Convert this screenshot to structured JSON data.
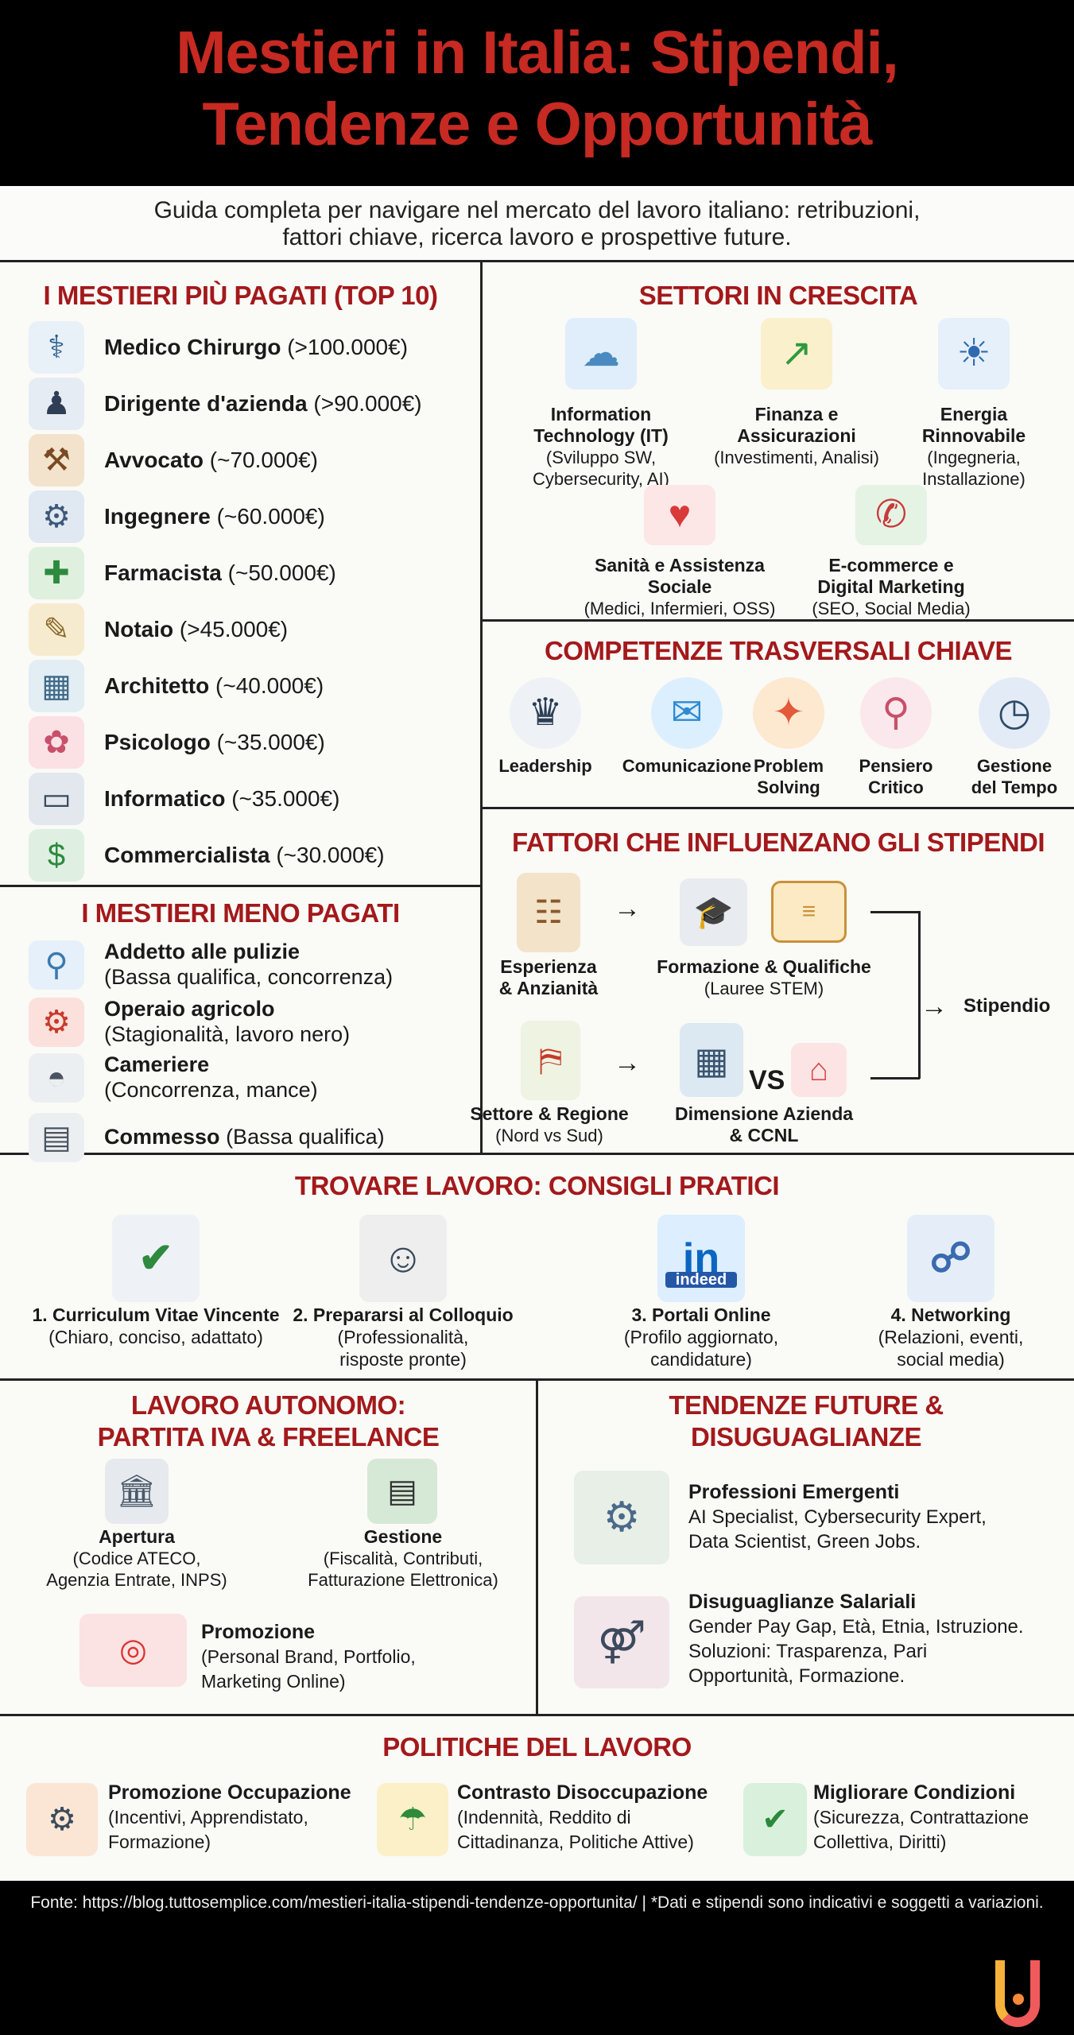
{
  "header": {
    "title_line1": "Mestieri in Italia: Stipendi,",
    "title_line2": "Tendenze e Opportunità",
    "subtitle_line1": "Guida completa per navigare nel mercato del lavoro italiano: retribuzioni,",
    "subtitle_line2": "fattori chiave, ricerca lavoro e prospettive future."
  },
  "colors": {
    "title": "#c62a22",
    "heading": "#a3191b",
    "background": "#fafaf7",
    "frame": "#000000"
  },
  "top_paid": {
    "title": "I MESTIERI PIÙ PAGATI (TOP 10)",
    "items": [
      {
        "name": "Medico Chirurgo",
        "salary": "(>100.000€)",
        "icon": "stethoscope-heart"
      },
      {
        "name": "Dirigente d'azienda",
        "salary": "(>90.000€)",
        "icon": "manager-growth"
      },
      {
        "name": "Avvocato",
        "salary": "(~70.000€)",
        "icon": "gavel"
      },
      {
        "name": "Ingegnere",
        "salary": "(~60.000€)",
        "icon": "gear-wrench"
      },
      {
        "name": "Farmacista",
        "salary": "(~50.000€)",
        "icon": "mortar-pestle"
      },
      {
        "name": "Notaio",
        "salary": "(>45.000€)",
        "icon": "scroll-document"
      },
      {
        "name": "Architetto",
        "salary": "(~40.000€)",
        "icon": "building-pencil"
      },
      {
        "name": "Psicologo",
        "salary": "(~35.000€)",
        "icon": "brain"
      },
      {
        "name": "Informatico",
        "salary": "(~35.000€)",
        "icon": "monitor-code"
      },
      {
        "name": "Commercialista",
        "salary": "(~30.000€)",
        "icon": "calculator-money"
      }
    ]
  },
  "least_paid": {
    "title": "I MESTIERI MENO PAGATI",
    "items": [
      {
        "name": "Addetto alle pulizie",
        "note": "(Bassa qualifica, concorrenza)",
        "icon": "mop-bucket"
      },
      {
        "name": "Operaio agricolo",
        "note": "(Stagionalità, lavoro nero)",
        "icon": "tractor"
      },
      {
        "name": "Cameriere",
        "note": "(Concorrenza, mance)",
        "icon": "serving-tray"
      },
      {
        "name": "Commesso",
        "note": "(Bassa qualifica)",
        "icon": "cash-register"
      }
    ]
  },
  "sectors": {
    "title": "SETTORI IN CRESCITA",
    "items": [
      {
        "title_1": "Information",
        "title_2": "Technology (IT)",
        "sub_1": "(Sviluppo SW,",
        "sub_2": "Cybersecurity, AI)",
        "icon": "cloud-lock"
      },
      {
        "title_1": "Finanza e",
        "title_2": "Assicurazioni",
        "sub_1": "(Investimenti, Analisi)",
        "sub_2": "",
        "icon": "coins-growth"
      },
      {
        "title_1": "Energia",
        "title_2": "Rinnovabile",
        "sub_1": "(Ingegneria,",
        "sub_2": "Installazione)",
        "icon": "wind-solar"
      },
      {
        "title_1": "Sanità e Assistenza",
        "title_2": "Sociale",
        "sub_1": "(Medici, Infermieri, OSS)",
        "sub_2": "",
        "icon": "hands-heart"
      },
      {
        "title_1": "E-commerce e",
        "title_2": "Digital Marketing",
        "sub_1": "(SEO, Social Media)",
        "sub_2": "",
        "icon": "cart-megaphone"
      }
    ]
  },
  "skills": {
    "title": "COMPETENZE TRASVERSALI CHIAVE",
    "items": [
      {
        "l1": "Leadership",
        "l2": "",
        "icon": "leader-team"
      },
      {
        "l1": "Comunicazione",
        "l2": "",
        "icon": "speech-bubbles"
      },
      {
        "l1": "Problem",
        "l2": "Solving",
        "icon": "puzzle"
      },
      {
        "l1": "Pensiero",
        "l2": "Critico",
        "icon": "magnifier-brain"
      },
      {
        "l1": "Gestione",
        "l2": "del Tempo",
        "icon": "clock-check"
      }
    ]
  },
  "factors": {
    "title": "FATTORI CHE INFLUENZANO GLI STIPENDI",
    "experience": {
      "l1": "Esperienza",
      "l2": "& Anzianità",
      "icon": "ladder-chart"
    },
    "education": {
      "l1": "Formazione & Qualifiche",
      "l2": "(Lauree STEM)",
      "icon": "graduation-cap-diploma"
    },
    "region": {
      "l1": "Settore & Regione",
      "l2": "(Nord vs Sud)",
      "icon": "italy-map"
    },
    "company": {
      "l1": "Dimensione Azienda",
      "l2": "& CCNL",
      "vs": "VS",
      "icon": "office-vs-shop"
    },
    "result": "Stipendio"
  },
  "job_tips": {
    "title": "TROVARE LAVORO: CONSIGLI PRATICI",
    "items": [
      {
        "title": "1. Curriculum Vitae Vincente",
        "sub_1": "(Chiaro, conciso, adattato)",
        "sub_2": "",
        "icon": "cv-document"
      },
      {
        "title": "2. Prepararsi al Colloquio",
        "sub_1": "(Professionalità,",
        "sub_2": "risposte pronte)",
        "icon": "interview-handshake"
      },
      {
        "title": "3. Portali Online",
        "sub_1": "(Profilo aggiornato,",
        "sub_2": "candidature)",
        "icon": "monitor-job-portals",
        "badge": "indeed"
      },
      {
        "title": "4. Networking",
        "sub_1": "(Relazioni, eventi,",
        "sub_2": "social media)",
        "icon": "network-people"
      }
    ]
  },
  "self_employment": {
    "title_1": "LAVORO AUTONOMO:",
    "title_2": "PARTITA IVA & FREELANCE",
    "items": [
      {
        "title": "Apertura",
        "sub_1": "(Codice ATECO,",
        "sub_2": "Agenzia Entrate, INPS)",
        "icon": "government-building"
      },
      {
        "title": "Gestione",
        "sub_1": "(Fiscalità, Contributi,",
        "sub_2": "Fatturazione Elettronica)",
        "icon": "calculator-invoice"
      },
      {
        "title": "Promozione",
        "sub_1": "(Personal Brand, Portfolio,",
        "sub_2": "Marketing Online)",
        "icon": "megaphone-target"
      }
    ]
  },
  "trends": {
    "title_1": "TENDENZE FUTURE &",
    "title_2": "DISUGUAGLIANZE",
    "items": [
      {
        "title": "Professioni Emergenti",
        "lines": [
          "AI Specialist, Cybersecurity Expert,",
          "Data Scientist, Green Jobs."
        ],
        "icon": "robot-gear-leaf"
      },
      {
        "title": "Disuguaglianze Salariali",
        "lines": [
          "Gender Pay Gap, Età, Etnia, Istruzione.",
          "Soluzioni: Trasparenza, Pari",
          "Opportunità, Formazione."
        ],
        "icon": "man-woman-money"
      }
    ]
  },
  "policies": {
    "title": "POLITICHE DEL LAVORO",
    "items": [
      {
        "title": "Promozione Occupazione",
        "sub_1": "(Incentivi, Apprendistato,",
        "sub_2": "Formazione)",
        "icon": "hand-gear"
      },
      {
        "title": "Contrasto Disoccupazione",
        "sub_1": "(Indennità, Reddito di",
        "sub_2": "Cittadinanza, Politiche Attive)",
        "icon": "umbrella-money"
      },
      {
        "title": "Migliorare Condizioni",
        "sub_1": "(Sicurezza, Contrattazione",
        "sub_2": "Collettiva, Diritti)",
        "icon": "shield-check"
      }
    ]
  },
  "footer": {
    "source": "Fonte: https://blog.tuttosemplice.com/mestieri-italia-stipendi-tendenze-opportunita/ | *Dati e stipendi sono indicativi e soggetti a variazioni.",
    "logo": "U"
  }
}
